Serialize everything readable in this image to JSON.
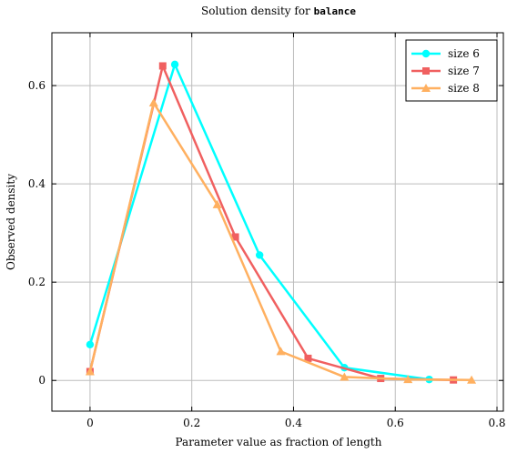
{
  "chart_data": {
    "type": "line",
    "title_prefix": "Solution density for ",
    "title_code": "balance",
    "xlabel": "Parameter value as fraction of length",
    "ylabel": "Observed density",
    "xlim": [
      -0.075,
      0.8125
    ],
    "ylim": [
      -0.0625,
      0.7075
    ],
    "xticks": [
      0,
      0.2,
      0.4,
      0.6,
      0.8
    ],
    "xtick_labels": [
      "0",
      "0.2",
      "0.4",
      "0.6",
      "0.8"
    ],
    "yticks": [
      0,
      0.2,
      0.4,
      0.6
    ],
    "ytick_labels": [
      "0",
      "0.2",
      "0.4",
      "0.6"
    ],
    "grid": true,
    "legend_position": "top-right",
    "series": [
      {
        "name": "size 6",
        "color": "#00ffff",
        "marker": "circle",
        "x": [
          0,
          0.1667,
          0.3333,
          0.5,
          0.6667
        ],
        "y": [
          0.073,
          0.643,
          0.255,
          0.026,
          0.002
        ]
      },
      {
        "name": "size 7",
        "color": "#f06060",
        "marker": "square",
        "x": [
          0,
          0.1429,
          0.2857,
          0.4286,
          0.5714,
          0.7143
        ],
        "y": [
          0.018,
          0.64,
          0.292,
          0.045,
          0.004,
          0.001
        ]
      },
      {
        "name": "size 8",
        "color": "#ffb060",
        "marker": "triangle",
        "x": [
          0,
          0.125,
          0.25,
          0.375,
          0.5,
          0.625,
          0.75
        ],
        "y": [
          0.018,
          0.565,
          0.358,
          0.059,
          0.007,
          0.002,
          0.001
        ]
      }
    ]
  }
}
